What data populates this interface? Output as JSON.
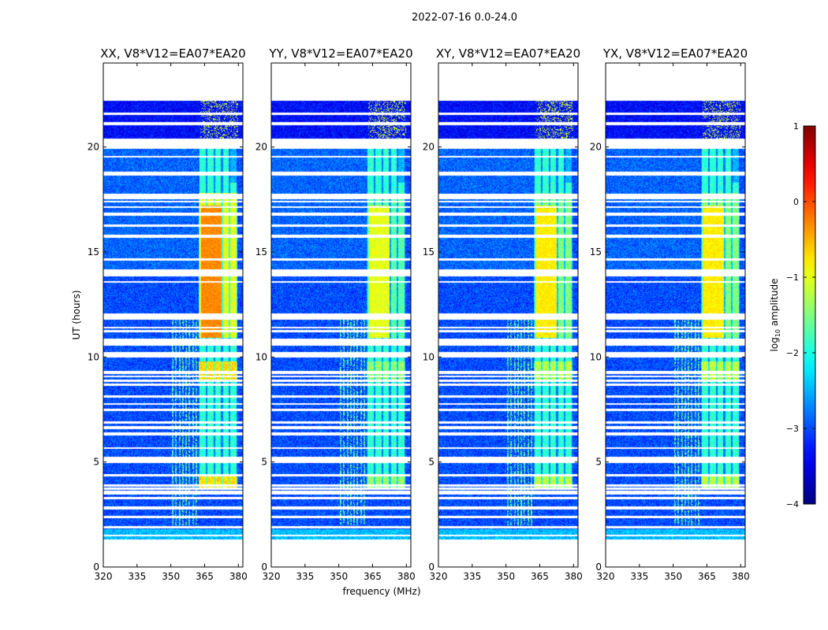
{
  "suptitle": "2022-07-16 0.0-24.0",
  "chart_data": {
    "type": "heatmap",
    "shared": {
      "xlabel": "frequency (MHz)",
      "ylabel": "UT (hours)",
      "xlim": [
        320,
        382
      ],
      "ylim": [
        0,
        24
      ],
      "xticks": [
        320,
        335,
        350,
        365,
        380
      ],
      "yticks": [
        0,
        5,
        10,
        15,
        20
      ]
    },
    "panels": [
      {
        "title": "XX, V8*V12=EA07*EA20",
        "rfi_band_peak_log10": -0.3
      },
      {
        "title": "YY, V8*V12=EA07*EA20",
        "rfi_band_peak_log10": -1.0
      },
      {
        "title": "XY, V8*V12=EA07*EA20",
        "rfi_band_peak_log10": -0.8
      },
      {
        "title": "YX, V8*V12=EA07*EA20",
        "rfi_band_peak_log10": -0.8
      }
    ],
    "data_coverage": {
      "ut_start": 1.3,
      "ut_end": 22.2,
      "gap_start": 19.9,
      "gap_end": 20.4
    },
    "rfi_band_mhz": [
      362.5,
      379.5
    ],
    "rfi_active_ut": [
      3.7,
      20.0
    ],
    "strong_rfi_ut": [
      10.9,
      17.8
    ],
    "colorbar": {
      "label": "log10 amplitude",
      "label_base": "log",
      "label_sub": "10",
      "label_rest": " amplitude",
      "range": [
        -4,
        1
      ],
      "ticks": [
        "1",
        "0",
        "−1",
        "−2",
        "−3",
        "−4"
      ]
    }
  }
}
